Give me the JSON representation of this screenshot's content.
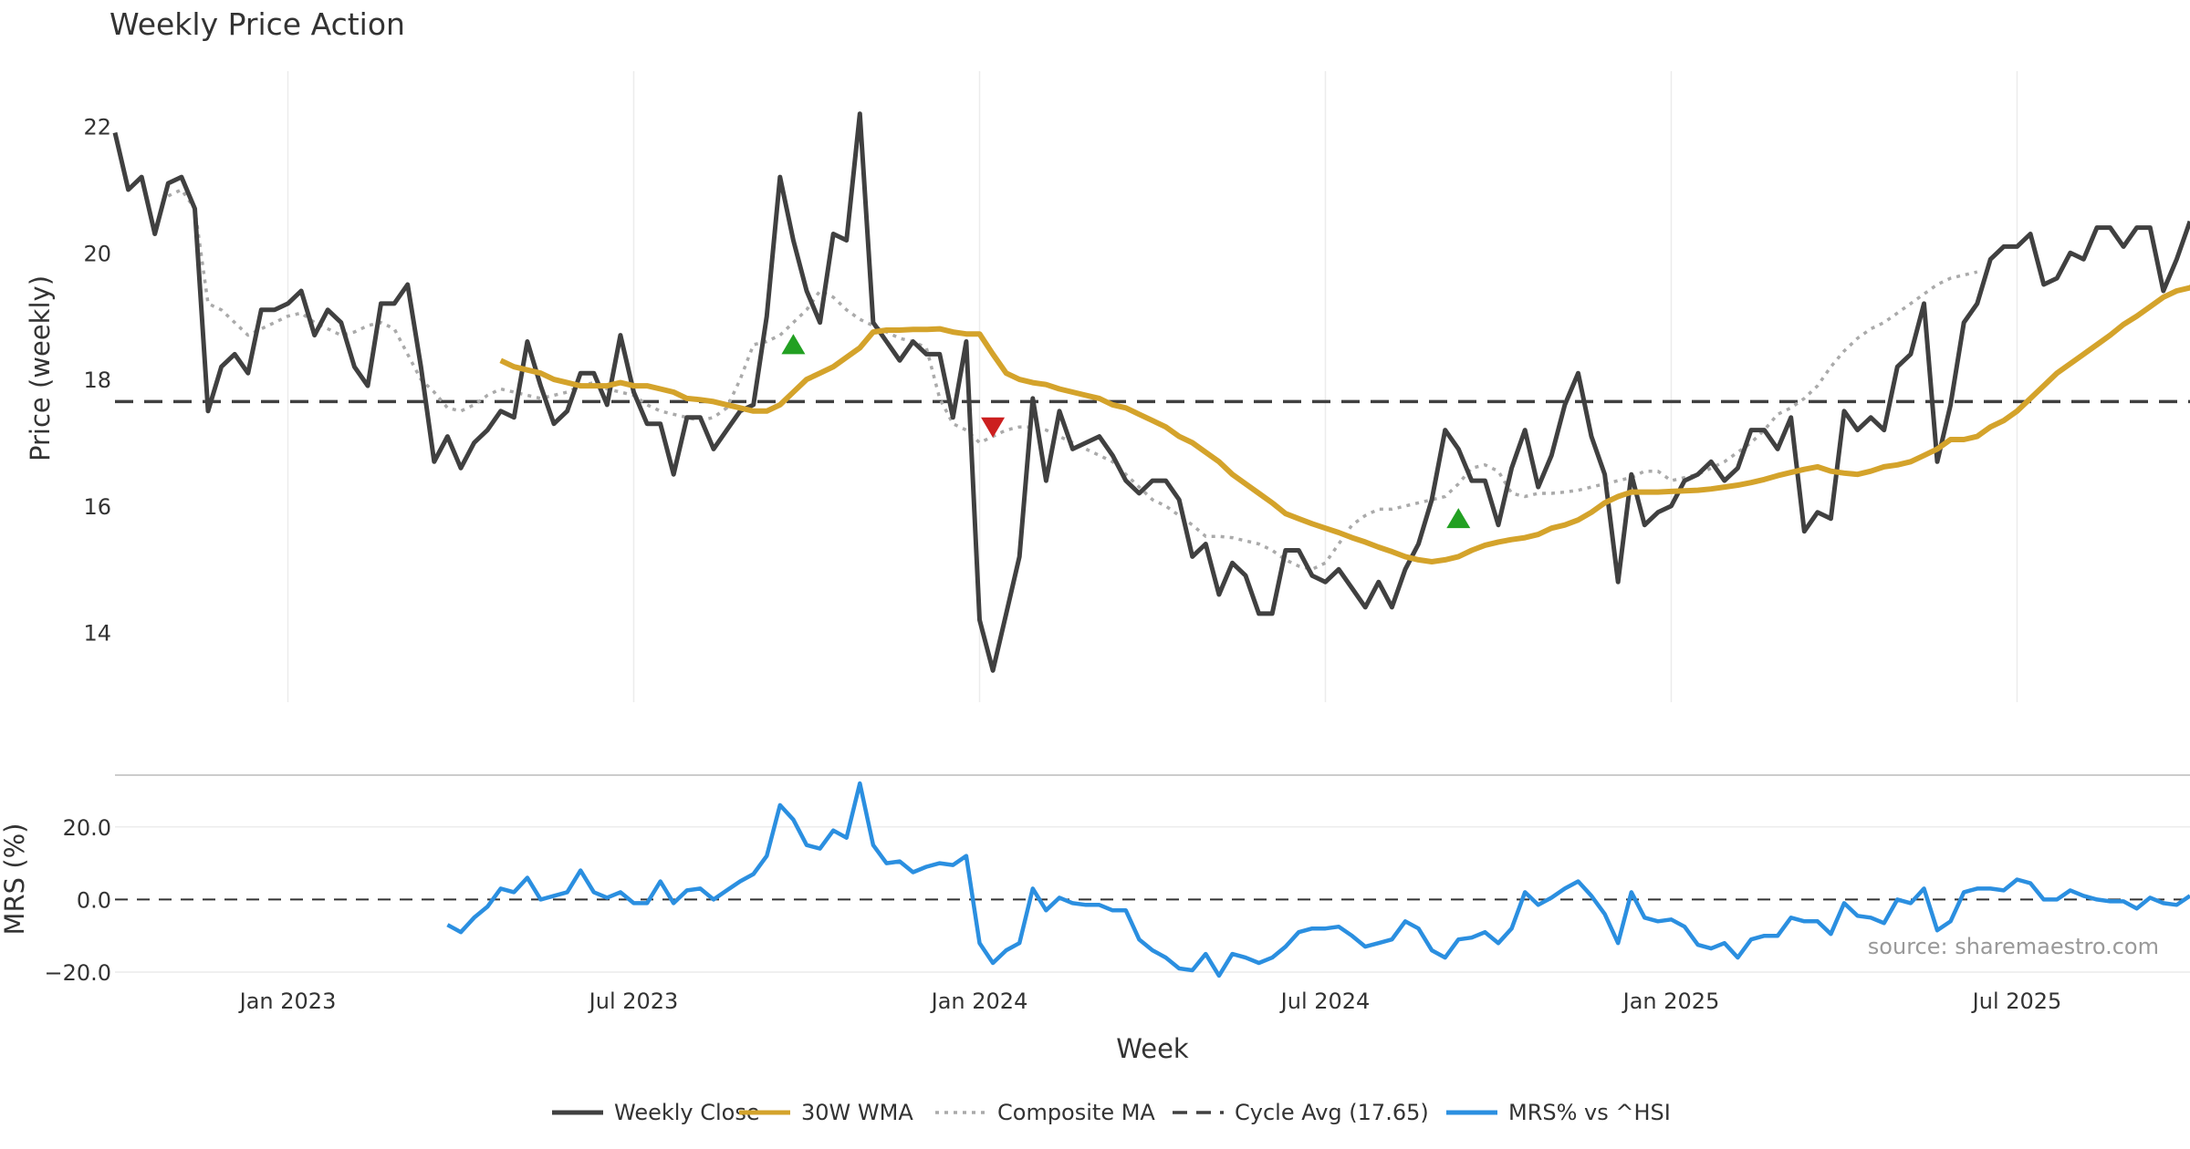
{
  "chart_data": [
    {
      "type": "line",
      "title": "Weekly Price Action",
      "xlabel": "Week",
      "ylabel": "Price (weekly)",
      "ylim": [
        12.9,
        22.7
      ],
      "y_ticks": [
        14,
        16,
        18,
        20,
        22
      ],
      "x_ticks": [
        "Jan 2023",
        "Jul 2023",
        "Jan 2024",
        "Jul 2024",
        "Jan 2025",
        "Jul 2025"
      ],
      "grid": "vertical",
      "cycle_avg": 17.65,
      "series": [
        {
          "name": "Weekly Close",
          "color": "#404040",
          "start_week": 0,
          "values": [
            21.9,
            21.0,
            21.2,
            20.3,
            21.1,
            21.2,
            20.7,
            17.5,
            18.2,
            18.4,
            18.1,
            19.1,
            19.1,
            19.2,
            19.4,
            18.7,
            19.1,
            18.9,
            18.2,
            17.9,
            19.2,
            19.2,
            19.5,
            18.2,
            16.7,
            17.1,
            16.6,
            17.0,
            17.2,
            17.5,
            17.4,
            18.6,
            17.9,
            17.3,
            17.5,
            18.1,
            18.1,
            17.6,
            18.7,
            17.8,
            17.3,
            17.3,
            16.5,
            17.4,
            17.4,
            16.9,
            17.2,
            17.5,
            17.6,
            19.0,
            21.2,
            20.2,
            19.4,
            18.9,
            20.3,
            20.2,
            22.2,
            18.9,
            18.6,
            18.3,
            18.6,
            18.4,
            18.4,
            17.4,
            18.6,
            14.2,
            13.4,
            14.3,
            15.2,
            17.7,
            16.4,
            17.5,
            16.9,
            17.0,
            17.1,
            16.8,
            16.4,
            16.2,
            16.4,
            16.4,
            16.1,
            15.2,
            15.4,
            14.6,
            15.1,
            14.9,
            14.3,
            14.3,
            15.3,
            15.3,
            14.9,
            14.8,
            15.0,
            14.7,
            14.4,
            14.8,
            14.4,
            15.0,
            15.4,
            16.1,
            17.2,
            16.9,
            16.4,
            16.4,
            15.7,
            16.6,
            17.2,
            16.3,
            16.8,
            17.6,
            18.1,
            17.1,
            16.5,
            14.8,
            16.5,
            15.7,
            15.9,
            16.0,
            16.4,
            16.5,
            16.7,
            16.4,
            16.6,
            17.2,
            17.2,
            16.9,
            17.4,
            15.6,
            15.9,
            15.8,
            17.5,
            17.2,
            17.4,
            17.2,
            18.2,
            18.4,
            19.2,
            16.7,
            17.6,
            18.9,
            19.2,
            19.9,
            20.1,
            20.1,
            20.3,
            19.5,
            19.6,
            20.0,
            19.9,
            20.4,
            20.4,
            20.1,
            20.4,
            20.4,
            19.4,
            19.9,
            20.5
          ]
        },
        {
          "name": "30W WMA",
          "color": "#D4A32B",
          "start_week": 29,
          "values": [
            18.3,
            18.2,
            18.15,
            18.1,
            18.0,
            17.95,
            17.9,
            17.9,
            17.9,
            17.95,
            17.9,
            17.9,
            17.85,
            17.8,
            17.7,
            17.68,
            17.65,
            17.6,
            17.55,
            17.5,
            17.5,
            17.6,
            17.8,
            18.0,
            18.1,
            18.2,
            18.35,
            18.5,
            18.75,
            18.78,
            18.78,
            18.79,
            18.79,
            18.8,
            18.75,
            18.72,
            18.72,
            18.4,
            18.1,
            18.0,
            17.95,
            17.92,
            17.85,
            17.8,
            17.75,
            17.7,
            17.6,
            17.55,
            17.45,
            17.35,
            17.25,
            17.1,
            17.0,
            16.85,
            16.7,
            16.5,
            16.35,
            16.2,
            16.05,
            15.88,
            15.8,
            15.72,
            15.65,
            15.58,
            15.5,
            15.43,
            15.35,
            15.28,
            15.2,
            15.15,
            15.12,
            15.15,
            15.2,
            15.3,
            15.38,
            15.43,
            15.47,
            15.5,
            15.55,
            15.65,
            15.7,
            15.78,
            15.9,
            16.05,
            16.15,
            16.22,
            16.22,
            16.22,
            16.23,
            16.24,
            16.25,
            16.27,
            16.3,
            16.33,
            16.37,
            16.42,
            16.48,
            16.53,
            16.58,
            16.62,
            16.55,
            16.52,
            16.5,
            16.55,
            16.62,
            16.65,
            16.7,
            16.8,
            16.9,
            17.05,
            17.05,
            17.1,
            17.25,
            17.35,
            17.5,
            17.7,
            17.9,
            18.1,
            18.25,
            18.4,
            18.55,
            18.7,
            18.87,
            19.0,
            19.15,
            19.3,
            19.4,
            19.45,
            19.55
          ]
        },
        {
          "name": "Composite MA",
          "color": "#aaaaaa",
          "start_week": 4,
          "values": [
            20.9,
            21.0,
            20.7,
            19.2,
            19.1,
            18.9,
            18.7,
            18.8,
            18.9,
            19.0,
            19.05,
            18.9,
            18.8,
            18.7,
            18.75,
            18.85,
            18.9,
            18.8,
            18.4,
            18.0,
            17.8,
            17.55,
            17.5,
            17.6,
            17.75,
            17.85,
            17.8,
            17.75,
            17.7,
            17.75,
            17.8,
            17.9,
            17.95,
            17.85,
            17.8,
            17.75,
            17.6,
            17.5,
            17.45,
            17.4,
            17.35,
            17.4,
            17.55,
            18.0,
            18.55,
            18.6,
            18.7,
            18.9,
            19.1,
            19.4,
            19.3,
            19.1,
            18.95,
            18.85,
            18.75,
            18.65,
            18.6,
            18.5,
            17.7,
            17.3,
            17.2,
            17.0,
            17.1,
            17.2,
            17.25,
            17.25,
            17.2,
            17.1,
            17.0,
            16.9,
            16.8,
            16.7,
            16.5,
            16.3,
            16.1,
            16.0,
            15.85,
            15.7,
            15.52,
            15.52,
            15.5,
            15.45,
            15.4,
            15.3,
            15.15,
            15.05,
            15.0,
            15.1,
            15.4,
            15.7,
            15.85,
            15.95,
            15.95,
            16.0,
            16.05,
            16.1,
            16.15,
            16.35,
            16.6,
            16.65,
            16.55,
            16.2,
            16.15,
            16.2,
            16.2,
            16.22,
            16.25,
            16.3,
            16.35,
            16.4,
            16.45,
            16.55,
            16.55,
            16.4,
            16.45,
            16.5,
            16.6,
            16.7,
            16.85,
            17.0,
            17.2,
            17.45,
            17.55,
            17.7,
            17.9,
            18.2,
            18.45,
            18.65,
            18.8,
            18.9,
            19.05,
            19.2,
            19.35,
            19.5,
            19.6,
            19.65,
            19.7
          ]
        }
      ],
      "markers": [
        {
          "type": "buy",
          "week": 51,
          "value": 18.55,
          "color": "#22a022"
        },
        {
          "type": "sell",
          "week": 66,
          "value": 17.25,
          "color": "#cc1f1f"
        },
        {
          "type": "buy",
          "week": 101,
          "value": 15.8,
          "color": "#22a022"
        }
      ]
    },
    {
      "type": "line",
      "title": "",
      "xlabel": "Week",
      "ylabel": "MRS (%)",
      "ylim": [
        -20.0,
        33.0
      ],
      "y_ticks": [
        20.0,
        0.0,
        -20.0
      ],
      "y_tick_labels": [
        "20.0",
        "0.0",
        "−20.0"
      ],
      "grid": "horizontal",
      "zero_line": 0.0,
      "series": [
        {
          "name": "MRS% vs ^HSI",
          "color": "#2b8fe0",
          "start_week": 25,
          "values": [
            -7.0,
            -9.0,
            -5.0,
            -2.0,
            3.0,
            2.0,
            6.0,
            0.0,
            1.0,
            2.0,
            8.0,
            2.0,
            0.5,
            2.0,
            -1.0,
            -1.0,
            5.0,
            -1.0,
            2.5,
            3.0,
            0.0,
            2.5,
            5.0,
            7.0,
            12.0,
            26.0,
            22.0,
            15.0,
            14.0,
            19.0,
            17.0,
            32.0,
            15.0,
            10.0,
            10.5,
            7.5,
            9.0,
            10.0,
            9.5,
            12.0,
            -12.0,
            -17.5,
            -14.0,
            -12.0,
            3.0,
            -3.0,
            0.5,
            -1.0,
            -1.5,
            -1.5,
            -3.0,
            -3.0,
            -11.0,
            -14.0,
            -16.0,
            -19.0,
            -19.5,
            -15.0,
            -21.0,
            -15.0,
            -16.0,
            -17.5,
            -16.0,
            -13.0,
            -9.0,
            -8.0,
            -8.0,
            -7.5,
            -10.0,
            -13.0,
            -12.0,
            -11.0,
            -6.0,
            -8.0,
            -14.0,
            -16.0,
            -11.0,
            -10.5,
            -9.0,
            -12.0,
            -8.0,
            2.0,
            -1.5,
            0.5,
            3.0,
            5.0,
            1.0,
            -4.0,
            -12.0,
            2.0,
            -5.0,
            -6.0,
            -5.5,
            -7.5,
            -12.5,
            -13.5,
            -12.0,
            -16.0,
            -11.0,
            -10.0,
            -10.0,
            -5.0,
            -6.0,
            -6.0,
            -9.5,
            -1.0,
            -4.5,
            -5.0,
            -6.5,
            0.0,
            -1.0,
            3.0,
            -8.5,
            -6.0,
            2.0,
            3.0,
            3.0,
            2.5,
            5.5,
            4.5,
            0.0,
            0.0,
            2.5,
            1.0,
            0.0,
            -0.5,
            -0.5,
            -2.5,
            0.5,
            -1.0,
            -1.5,
            1.0
          ]
        }
      ],
      "annotation": "source: sharemaestro.com"
    }
  ],
  "total_weeks": 157,
  "legend": [
    {
      "label": "Weekly Close",
      "style": "solid",
      "color": "#404040"
    },
    {
      "label": "30W WMA",
      "style": "solid",
      "color": "#D4A32B"
    },
    {
      "label": "Composite MA",
      "style": "dotted",
      "color": "#aaaaaa"
    },
    {
      "label": "Cycle Avg (17.65)",
      "style": "dashed",
      "color": "#404040"
    },
    {
      "label": "MRS% vs ^HSI",
      "style": "solid",
      "color": "#2b8fe0"
    }
  ],
  "x_tick_weeks": [
    13,
    39,
    65,
    91,
    117,
    143
  ]
}
